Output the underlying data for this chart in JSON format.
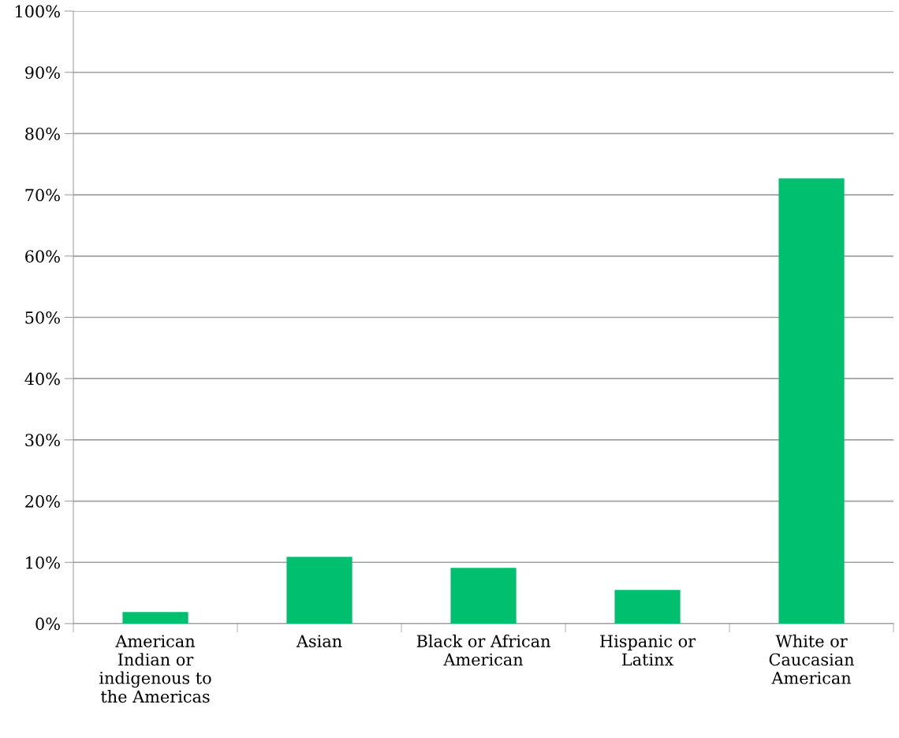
{
  "chart_data": {
    "type": "bar",
    "categories": [
      "American\nIndian or\nindigenous to\nthe Americas",
      "Asian",
      "Black or African\nAmerican",
      "Hispanic or\nLatinx",
      "White or\nCaucasian\nAmerican"
    ],
    "values": [
      1.9,
      10.9,
      9.1,
      5.5,
      72.7
    ],
    "color": "#00bf6f",
    "ylim": [
      0,
      100
    ],
    "yticks": [
      {
        "value": 0,
        "label": "0%"
      },
      {
        "value": 10,
        "label": "10%"
      },
      {
        "value": 20,
        "label": "20%"
      },
      {
        "value": 30,
        "label": "30%"
      },
      {
        "value": 40,
        "label": "40%"
      },
      {
        "value": 50,
        "label": "50%"
      },
      {
        "value": 60,
        "label": "60%"
      },
      {
        "value": 70,
        "label": "70%"
      },
      {
        "value": 80,
        "label": "80%"
      },
      {
        "value": 90,
        "label": "90%"
      },
      {
        "value": 100,
        "label": "100%"
      }
    ],
    "grid": "y"
  }
}
